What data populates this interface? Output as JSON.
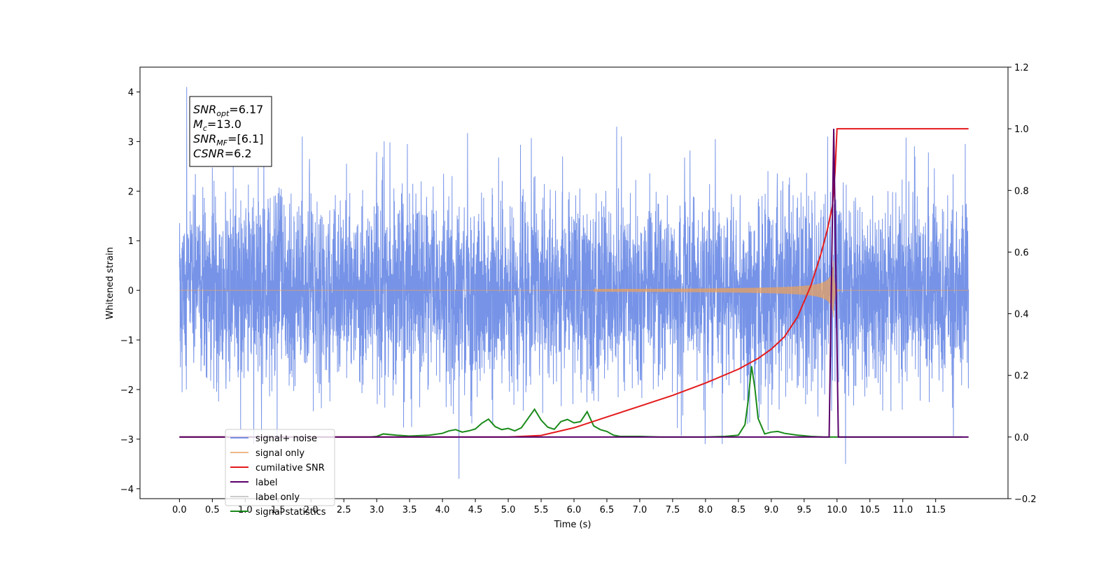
{
  "chart_data": {
    "type": "line",
    "xlabel": "Time (s)",
    "ylabel": "Whitened strain",
    "xlim": [
      -0.6,
      12.6
    ],
    "ylim": [
      -4.2,
      4.5
    ],
    "y2lim": [
      -0.2,
      1.2
    ],
    "x_ticks": [
      0.0,
      0.5,
      1.0,
      1.5,
      2.0,
      2.5,
      3.0,
      3.5,
      4.0,
      4.5,
      5.0,
      5.5,
      6.0,
      6.5,
      7.0,
      7.5,
      8.0,
      8.5,
      9.0,
      9.5,
      10.0,
      10.5,
      11.0,
      11.5
    ],
    "x_tick_labels": [
      "0.0",
      "0.5",
      "1.0",
      "1.5",
      "2.0",
      "2.5",
      "3.0",
      "3.5",
      "4.0",
      "4.5",
      "5.0",
      "5.5",
      "6.0",
      "6.5",
      "7.0",
      "7.5",
      "8.0",
      "8.5",
      "9.0",
      "9.5",
      "10.0",
      "10.5",
      "11.0",
      "11.5"
    ],
    "y_ticks": [
      -4,
      -3,
      -2,
      -1,
      0,
      1,
      2,
      3,
      4
    ],
    "y_tick_labels": [
      "−4",
      "−3",
      "−2",
      "−1",
      "0",
      "1",
      "2",
      "3",
      "4"
    ],
    "y2_ticks": [
      -0.2,
      0.0,
      0.2,
      0.4,
      0.6,
      0.8,
      1.0,
      1.2
    ],
    "y2_tick_labels": [
      "−0.2",
      "0.0",
      "0.2",
      "0.4",
      "0.6",
      "0.8",
      "1.0",
      "1.2"
    ],
    "grid": false,
    "legend_position": "lower-left",
    "series": [
      {
        "name": "signal+ noise",
        "axis": "left",
        "color": "#4f74e0",
        "x_range": [
          0.0,
          12.0
        ],
        "noise_sigma": 0.95,
        "peaks": [
          [
            0.11,
            4.1
          ],
          [
            4.25,
            -3.8
          ],
          [
            10.13,
            -3.5
          ],
          [
            6.65,
            3.3
          ],
          [
            4.38,
            3.17
          ],
          [
            5.35,
            3.07
          ],
          [
            8.15,
            3.05
          ],
          [
            11.05,
            3.08
          ],
          [
            11.95,
            2.95
          ]
        ]
      },
      {
        "name": "signal only",
        "axis": "left",
        "color": "#e8a060",
        "chirp_start": 6.3,
        "merger_time": 9.95,
        "peak_amplitude": 0.35
      },
      {
        "name": "cumilative SNR",
        "axis": "right",
        "color": "#e41a1c",
        "x": [
          0.0,
          5.0,
          5.5,
          6.0,
          6.5,
          7.0,
          7.5,
          8.0,
          8.5,
          8.8,
          9.0,
          9.2,
          9.4,
          9.6,
          9.75,
          9.85,
          9.93,
          9.97,
          10.0,
          12.0
        ],
        "values": [
          0.0,
          0.0,
          0.005,
          0.03,
          0.065,
          0.1,
          0.135,
          0.175,
          0.22,
          0.255,
          0.285,
          0.325,
          0.39,
          0.49,
          0.59,
          0.67,
          0.75,
          0.86,
          1.0,
          1.0
        ]
      },
      {
        "name": "label",
        "axis": "right",
        "color": "#5a006a",
        "x": [
          0.0,
          9.88,
          9.95,
          10.02,
          12.0
        ],
        "values": [
          0.0,
          0.0,
          1.0,
          0.0,
          0.0
        ]
      },
      {
        "name": "label only",
        "axis": "right",
        "color": "#cccccc",
        "x": [],
        "values": []
      },
      {
        "name": "signal statistics",
        "axis": "right",
        "color": "#1a8a1a",
        "x": [
          0.0,
          2.9,
          3.0,
          3.1,
          3.3,
          3.5,
          3.8,
          4.0,
          4.1,
          4.2,
          4.3,
          4.4,
          4.5,
          4.6,
          4.7,
          4.8,
          4.9,
          5.0,
          5.1,
          5.2,
          5.3,
          5.4,
          5.5,
          5.6,
          5.7,
          5.8,
          5.9,
          6.0,
          6.1,
          6.2,
          6.3,
          6.4,
          6.5,
          6.6,
          6.7,
          7.0,
          7.3,
          7.5,
          8.0,
          8.3,
          8.5,
          8.6,
          8.65,
          8.7,
          8.75,
          8.8,
          8.9,
          9.0,
          9.1,
          9.2,
          9.4,
          9.6,
          9.8,
          10.0,
          11.0,
          11.9
        ],
        "values": [
          0.0,
          0.0,
          0.002,
          0.01,
          0.006,
          0.003,
          0.006,
          0.012,
          0.02,
          0.024,
          0.016,
          0.02,
          0.026,
          0.045,
          0.058,
          0.034,
          0.024,
          0.028,
          0.02,
          0.03,
          0.06,
          0.09,
          0.055,
          0.032,
          0.025,
          0.05,
          0.057,
          0.046,
          0.05,
          0.082,
          0.036,
          0.024,
          0.018,
          0.006,
          0.002,
          0.002,
          0.0,
          0.0,
          0.0,
          0.002,
          0.006,
          0.04,
          0.12,
          0.23,
          0.16,
          0.06,
          0.01,
          0.016,
          0.018,
          0.012,
          0.006,
          0.002,
          0.0,
          0.0,
          0.0,
          0.0
        ]
      }
    ],
    "annotation": {
      "lines": [
        {
          "main": "SNR",
          "sub": "opt",
          "rest": "=6.17"
        },
        {
          "main": "M",
          "sub": "c",
          "rest": "=13.0"
        },
        {
          "main": "SNR",
          "sub": "MF",
          "rest": "=[6.1]"
        },
        {
          "main": "CSNR",
          "sub": "",
          "rest": "=6.2"
        }
      ]
    }
  }
}
